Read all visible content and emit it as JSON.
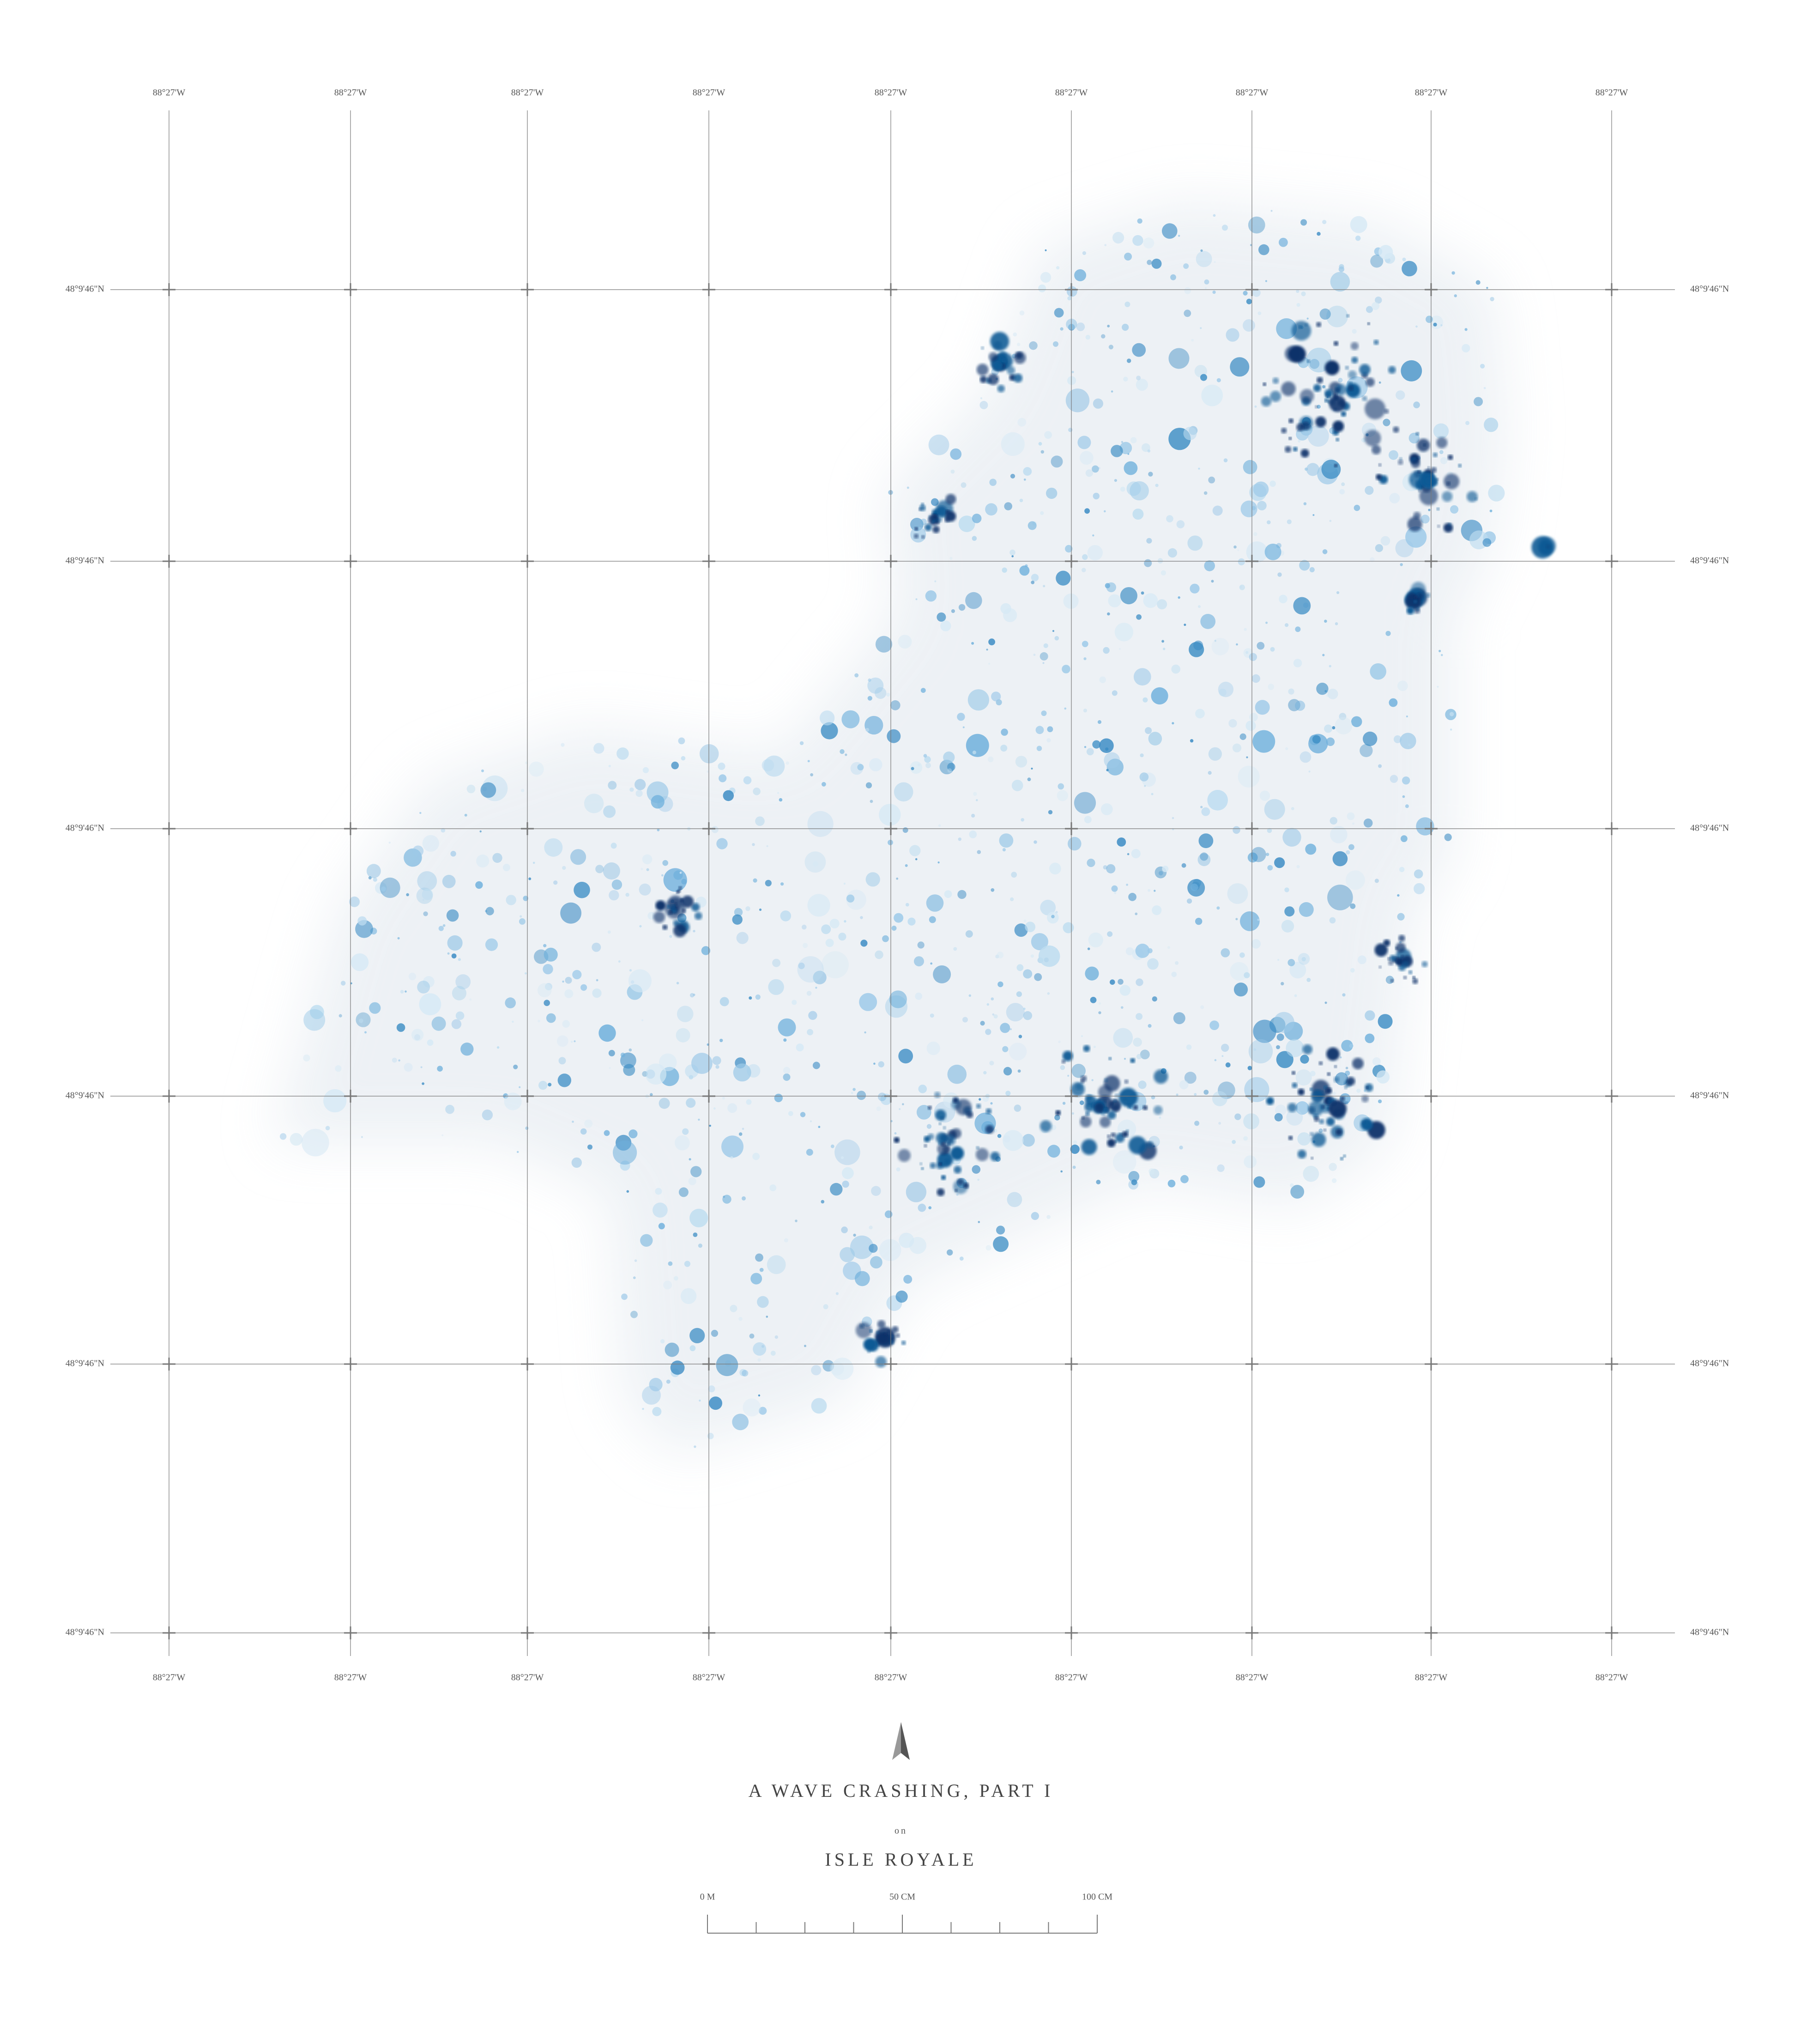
{
  "map": {
    "title": "A WAVE CRASHING, PART I",
    "connector": "on",
    "place": "ISLE ROYALE",
    "grid": {
      "top_labels": [
        "88°27'W",
        "88°27'W",
        "88°27'W",
        "88°27'W",
        "88°27'W",
        "88°27'W",
        "88°27'W",
        "88°27'W",
        "88°27'W"
      ],
      "bottom_labels": [
        "88°27'W",
        "88°27'W",
        "88°27'W",
        "88°27'W",
        "88°27'W",
        "88°27'W",
        "88°27'W",
        "88°27'W",
        "88°27'W"
      ],
      "left_labels": [
        "48°9'46\"N",
        "48°9'46\"N",
        "48°9'46\"N",
        "48°9'46\"N",
        "48°9'46\"N",
        "48°9'46\"N"
      ],
      "right_labels": [
        "48°9'46\"N",
        "48°9'46\"N",
        "48°9'46\"N",
        "48°9'46\"N",
        "48°9'46\"N",
        "48°9'46\"N"
      ]
    },
    "scale_bar": {
      "labels": [
        "0 M",
        "50 CM",
        "100 CM"
      ]
    }
  }
}
